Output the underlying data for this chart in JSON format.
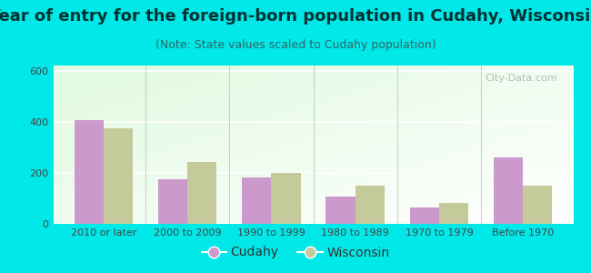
{
  "title": "Year of entry for the foreign-born population in Cudahy, Wisconsin",
  "subtitle": "(Note: State values scaled to Cudahy population)",
  "categories": [
    "2010 or later",
    "2000 to 2009",
    "1990 to 1999",
    "1980 to 1989",
    "1970 to 1979",
    "Before 1970"
  ],
  "cudahy_values": [
    407,
    175,
    180,
    108,
    65,
    260
  ],
  "wisconsin_values": [
    375,
    243,
    198,
    148,
    83,
    148
  ],
  "cudahy_color": "#cc99cc",
  "wisconsin_color": "#c5ca9a",
  "background_outer": "#00e8e8",
  "ylim": [
    0,
    620
  ],
  "yticks": [
    0,
    200,
    400,
    600
  ],
  "bar_width": 0.35,
  "title_fontsize": 13,
  "subtitle_fontsize": 9,
  "legend_fontsize": 10,
  "tick_fontsize": 8,
  "watermark": "City-Data.com"
}
